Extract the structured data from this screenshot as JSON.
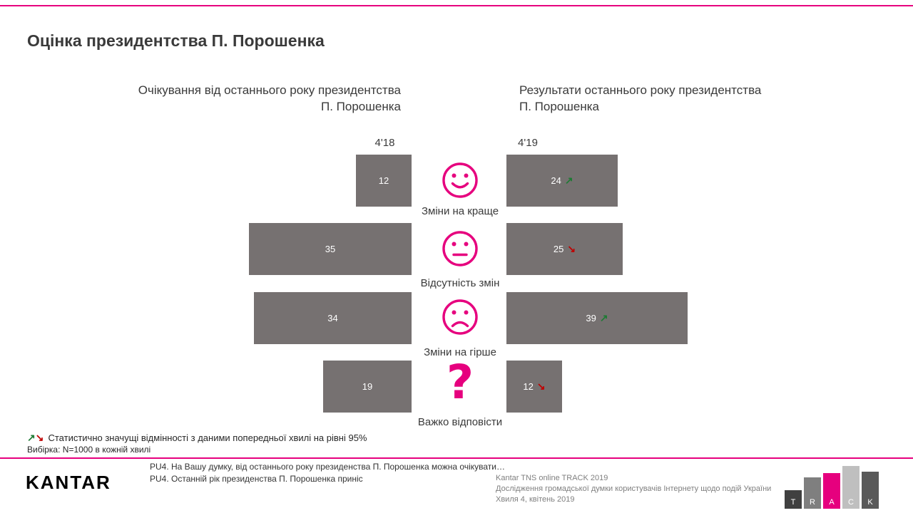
{
  "page": {
    "title": "Оцінка президентства П. Порошенка"
  },
  "headers": {
    "left_line1": "Очікування від останнього року президентства",
    "left_line2": "П. Порошенка",
    "right_line1": "Результати останнього року президентства",
    "right_line2": "П. Порошенка"
  },
  "chart_data": {
    "type": "bar",
    "orientation": "horizontal",
    "layout": "mirrored-comparison",
    "unit": "%",
    "value_range": [
      0,
      39
    ],
    "categories": [
      "Зміни на краще",
      "Відсутність змін",
      "Зміни на гірше",
      "Важко відповісти"
    ],
    "category_icons": [
      "happy-face-icon",
      "neutral-face-icon",
      "sad-face-icon",
      "question-mark-icon"
    ],
    "series": [
      {
        "name": "4'18",
        "role": "Очікування",
        "values": [
          12,
          35,
          34,
          19
        ]
      },
      {
        "name": "4'19",
        "role": "Результати",
        "values": [
          24,
          25,
          39,
          12
        ],
        "trend": [
          "up",
          "down",
          "up",
          "down"
        ]
      }
    ]
  },
  "glyphs": {
    "up": "↗",
    "down": "↘",
    "question": "?"
  },
  "notes": {
    "significance": "Статистично значущі відмінності з даними попередньої хвилі на рівні 95%",
    "sample": "Вибірка: N=1000 в кожній хвилі"
  },
  "footer": {
    "logo": "KANTAR",
    "question1": "PU4. На Вашу думку, від останнього року президенства П. Порошенка можна очікувати…",
    "question2": "PU4. Останній рік президенства П. Порошенка приніс",
    "source_line1": "Kantar TNS online TRACK 2019",
    "source_line2": "Дослідження громадської думки користувачів Інтернету щодо подій України",
    "source_line3": "Хвиля 4, квітень 2019",
    "track_letters": [
      "T",
      "R",
      "A",
      "C",
      "K"
    ]
  },
  "colors": {
    "accent": "#E6007E",
    "bar_fill": "#767171",
    "trend_up": "#1E7B34",
    "trend_down": "#C00000",
    "track_bars": [
      "#404040",
      "#7F7F7F",
      "#E6007E",
      "#BFBFBF",
      "#595959"
    ]
  }
}
